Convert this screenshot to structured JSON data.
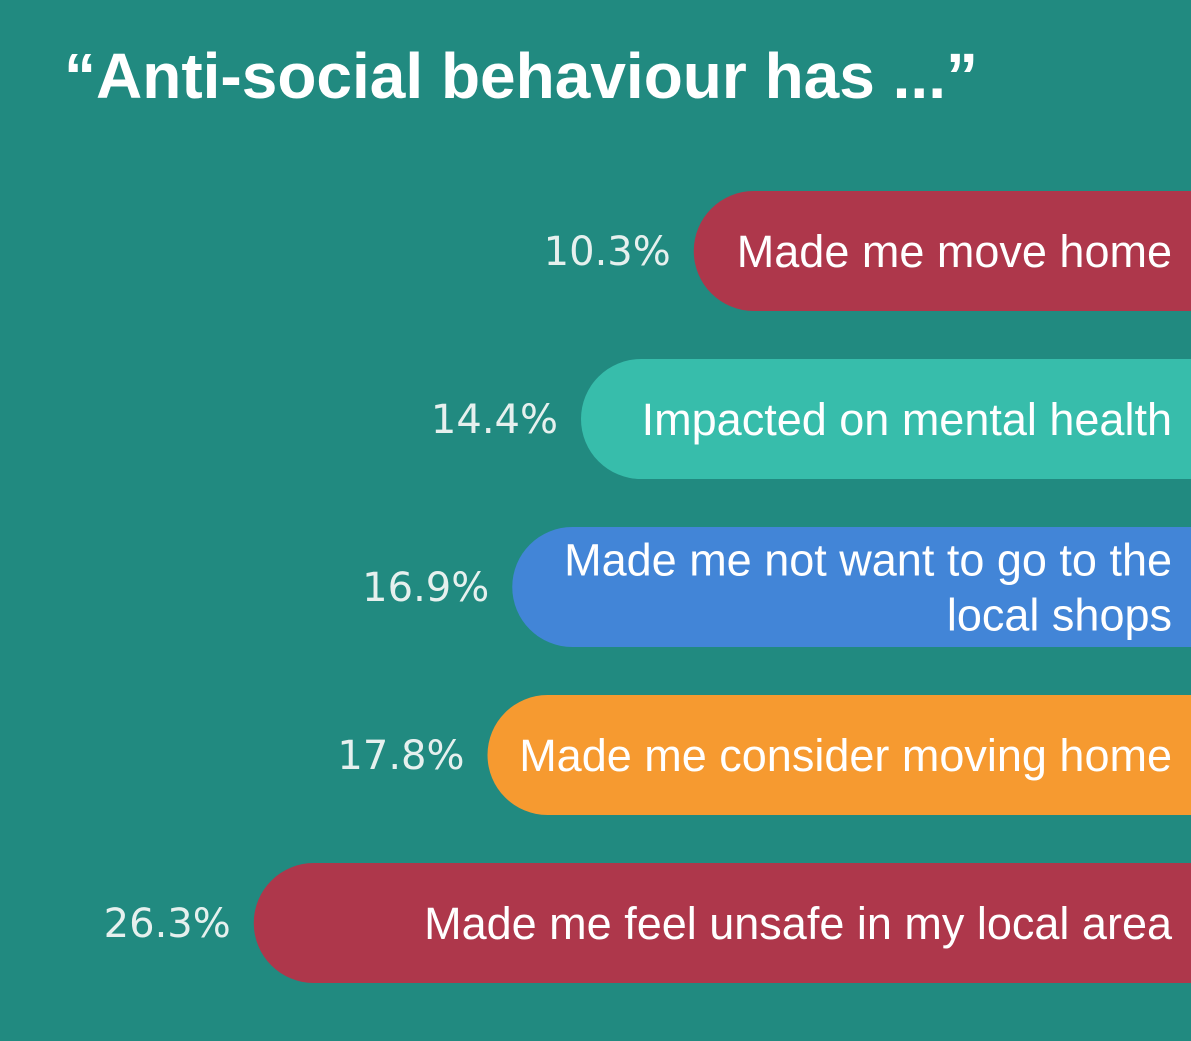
{
  "title": "“Anti-social behaviour has ...”",
  "chart_data": {
    "type": "bar",
    "orientation": "horizontal",
    "title": "“Anti-social behaviour has ...”",
    "categories": [
      [
        "Made me move home"
      ],
      [
        "Impacted on mental health"
      ],
      [
        "Made me not want to go to the",
        "local shops"
      ],
      [
        "Made me consider moving home"
      ],
      [
        "Made me feel unsafe in my local area"
      ]
    ],
    "values": [
      10.3,
      14.4,
      16.9,
      17.8,
      26.3
    ],
    "value_labels": [
      "10.3%",
      "14.4%",
      "16.9%",
      "17.8%",
      "26.3%"
    ],
    "colors": [
      "#AE374B",
      "#37BDAB",
      "#4285D7",
      "#F69A30",
      "#AE374B"
    ],
    "grid": false,
    "legend": "none"
  }
}
